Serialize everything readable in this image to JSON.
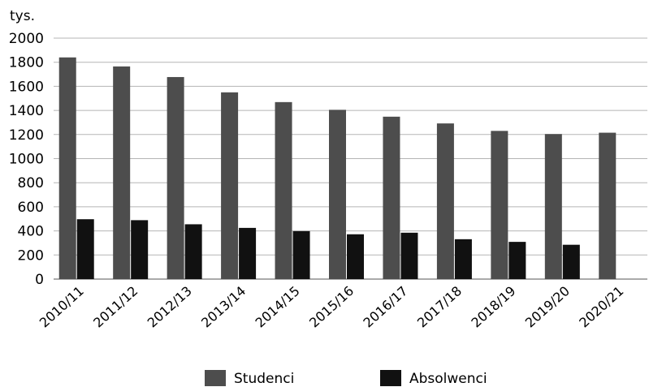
{
  "chart_data": {
    "type": "bar",
    "unit_label": "tys.",
    "categories": [
      "2010/11",
      "2011/12",
      "2012/13",
      "2013/14",
      "2014/15",
      "2015/16",
      "2016/17",
      "2017/18",
      "2018/19",
      "2019/20",
      "2020/21"
    ],
    "series": [
      {
        "name": "Studenci",
        "color": "#4d4d4d",
        "values": [
          1840,
          1765,
          1677,
          1550,
          1469,
          1405,
          1348,
          1292,
          1230,
          1204,
          1215
        ]
      },
      {
        "name": "Absolwenci",
        "color": "#111111",
        "values": [
          497,
          489,
          455,
          425,
          398,
          372,
          385,
          331,
          309,
          285,
          null
        ]
      }
    ],
    "ylim": [
      0,
      2000
    ],
    "yticks": [
      0,
      200,
      400,
      600,
      800,
      1000,
      1200,
      1400,
      1600,
      1800,
      2000
    ],
    "grid": true,
    "legend_position": "bottom"
  }
}
